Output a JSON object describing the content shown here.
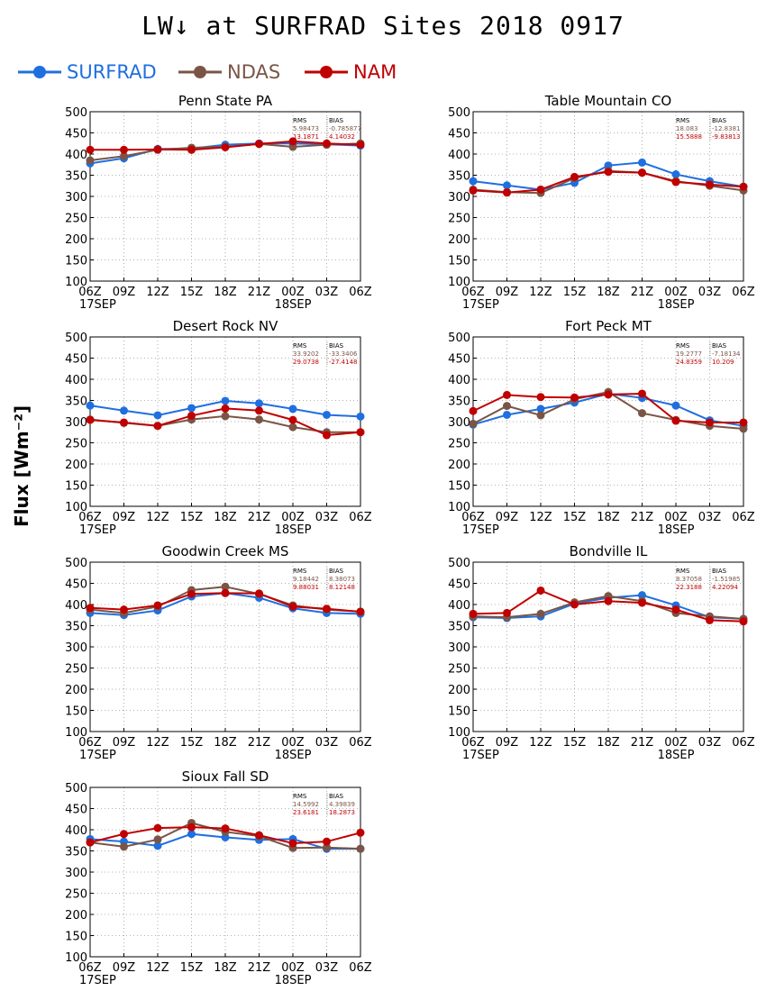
{
  "page": {
    "title": "LW↓ at SURFRAD Sites    2018 0917",
    "ylabel": "Flux [Wm⁻²]"
  },
  "legend": [
    {
      "name": "SURFRAD",
      "color": "#1f6fe0"
    },
    {
      "name": "NDAS",
      "color": "#7a5546"
    },
    {
      "name": "NAM",
      "color": "#c00000"
    }
  ],
  "chart_data": [
    {
      "type": "line",
      "title": "Penn State PA",
      "x": [
        "06Z",
        "09Z",
        "12Z",
        "15Z",
        "18Z",
        "21Z",
        "00Z",
        "03Z",
        "06Z"
      ],
      "date_labels": {
        "06Z_first": "17SEP",
        "00Z": "18SEP"
      },
      "ylim": [
        100,
        500
      ],
      "yticks": [
        100,
        150,
        200,
        250,
        300,
        350,
        400,
        450,
        500
      ],
      "grid": true,
      "stats": {
        "header": [
          "RMS",
          "BIAS"
        ],
        "ndas": [
          "5.98473",
          "-0.785877"
        ],
        "nam": [
          "13.1871",
          "4.14032"
        ]
      },
      "series": [
        {
          "name": "SURFRAD",
          "values": [
            378,
            390,
            412,
            413,
            422,
            425,
            425,
            423,
            420
          ]
        },
        {
          "name": "NDAS",
          "values": [
            385,
            395,
            410,
            415,
            417,
            424,
            417,
            422,
            425
          ]
        },
        {
          "name": "NAM",
          "values": [
            410,
            410,
            411,
            410,
            416,
            424,
            430,
            425,
            422
          ]
        }
      ]
    },
    {
      "type": "line",
      "title": "Table Mountain CO",
      "x": [
        "06Z",
        "09Z",
        "12Z",
        "15Z",
        "18Z",
        "21Z",
        "00Z",
        "03Z",
        "06Z"
      ],
      "date_labels": {
        "06Z_first": "17SEP",
        "00Z": "18SEP"
      },
      "ylim": [
        100,
        500
      ],
      "yticks": [
        100,
        150,
        200,
        250,
        300,
        350,
        400,
        450,
        500
      ],
      "grid": true,
      "stats": {
        "header": [
          "RMS",
          "BIAS"
        ],
        "ndas": [
          "18.083",
          "-12.8381"
        ],
        "nam": [
          "15.5888",
          "-9.83813"
        ]
      },
      "series": [
        {
          "name": "SURFRAD",
          "values": [
            336,
            326,
            316,
            332,
            373,
            380,
            352,
            336,
            323
          ]
        },
        {
          "name": "NDAS",
          "values": [
            316,
            310,
            308,
            343,
            360,
            356,
            336,
            325,
            314
          ]
        },
        {
          "name": "NAM",
          "values": [
            314,
            309,
            316,
            346,
            358,
            356,
            334,
            328,
            323
          ]
        }
      ]
    },
    {
      "type": "line",
      "title": "Desert Rock NV",
      "x": [
        "06Z",
        "09Z",
        "12Z",
        "15Z",
        "18Z",
        "21Z",
        "00Z",
        "03Z",
        "06Z"
      ],
      "date_labels": {
        "06Z_first": "17SEP",
        "00Z": "18SEP"
      },
      "ylim": [
        100,
        500
      ],
      "yticks": [
        100,
        150,
        200,
        250,
        300,
        350,
        400,
        450,
        500
      ],
      "grid": true,
      "stats": {
        "header": [
          "RMS",
          "BIAS"
        ],
        "ndas": [
          "33.9202",
          "-33.3406"
        ],
        "nam": [
          "29.0738",
          "-27.4148"
        ]
      },
      "series": [
        {
          "name": "SURFRAD",
          "values": [
            338,
            326,
            315,
            332,
            349,
            343,
            330,
            316,
            312
          ]
        },
        {
          "name": "NDAS",
          "values": [
            305,
            297,
            290,
            305,
            313,
            305,
            287,
            275,
            275
          ]
        },
        {
          "name": "NAM",
          "values": [
            304,
            298,
            290,
            314,
            331,
            326,
            304,
            268,
            275
          ]
        }
      ]
    },
    {
      "type": "line",
      "title": "Fort Peck MT",
      "x": [
        "06Z",
        "09Z",
        "12Z",
        "15Z",
        "18Z",
        "21Z",
        "00Z",
        "03Z",
        "06Z"
      ],
      "date_labels": {
        "06Z_first": "17SEP",
        "00Z": "18SEP"
      },
      "ylim": [
        100,
        500
      ],
      "yticks": [
        100,
        150,
        200,
        250,
        300,
        350,
        400,
        450,
        500
      ],
      "grid": true,
      "stats": {
        "header": [
          "RMS",
          "BIAS"
        ],
        "ndas": [
          "19.2777",
          "-7.18134"
        ],
        "nam": [
          "24.8359",
          "10.209"
        ]
      },
      "series": [
        {
          "name": "SURFRAD",
          "values": [
            293,
            316,
            330,
            345,
            366,
            356,
            338,
            303,
            290
          ]
        },
        {
          "name": "NDAS",
          "values": [
            295,
            337,
            315,
            353,
            370,
            320,
            304,
            290,
            283
          ]
        },
        {
          "name": "NAM",
          "values": [
            325,
            363,
            358,
            357,
            364,
            366,
            302,
            298,
            298
          ]
        }
      ]
    },
    {
      "type": "line",
      "title": "Goodwin Creek MS",
      "x": [
        "06Z",
        "09Z",
        "12Z",
        "15Z",
        "18Z",
        "21Z",
        "00Z",
        "03Z",
        "06Z"
      ],
      "date_labels": {
        "06Z_first": "17SEP",
        "00Z": "18SEP"
      },
      "ylim": [
        100,
        500
      ],
      "yticks": [
        100,
        150,
        200,
        250,
        300,
        350,
        400,
        450,
        500
      ],
      "grid": true,
      "stats": {
        "header": [
          "RMS",
          "BIAS"
        ],
        "ndas": [
          "9.18442",
          "8.38073"
        ],
        "nam": [
          "9.88031",
          "8.12148"
        ]
      },
      "series": [
        {
          "name": "SURFRAD",
          "values": [
            380,
            375,
            386,
            419,
            427,
            416,
            391,
            380,
            378
          ]
        },
        {
          "name": "NDAS",
          "values": [
            388,
            380,
            395,
            434,
            442,
            425,
            398,
            388,
            383
          ]
        },
        {
          "name": "NAM",
          "values": [
            392,
            388,
            398,
            425,
            427,
            426,
            395,
            390,
            383
          ]
        }
      ]
    },
    {
      "type": "line",
      "title": "Bondville IL",
      "x": [
        "06Z",
        "09Z",
        "12Z",
        "15Z",
        "18Z",
        "21Z",
        "00Z",
        "03Z",
        "06Z"
      ],
      "date_labels": {
        "06Z_first": "17SEP",
        "00Z": "18SEP"
      },
      "ylim": [
        100,
        500
      ],
      "yticks": [
        100,
        150,
        200,
        250,
        300,
        350,
        400,
        450,
        500
      ],
      "grid": true,
      "stats": {
        "header": [
          "RMS",
          "BIAS"
        ],
        "ndas": [
          "8.37058",
          "-1.51985"
        ],
        "nam": [
          "22.3188",
          "4.22094"
        ]
      },
      "series": [
        {
          "name": "SURFRAD",
          "values": [
            370,
            368,
            372,
            402,
            416,
            422,
            398,
            370,
            366
          ]
        },
        {
          "name": "NDAS",
          "values": [
            372,
            370,
            378,
            405,
            420,
            408,
            380,
            372,
            366
          ]
        },
        {
          "name": "NAM",
          "values": [
            378,
            380,
            433,
            400,
            408,
            404,
            388,
            363,
            360
          ]
        }
      ]
    },
    {
      "type": "line",
      "title": "Sioux Fall SD",
      "x": [
        "06Z",
        "09Z",
        "12Z",
        "15Z",
        "18Z",
        "21Z",
        "00Z",
        "03Z",
        "06Z"
      ],
      "date_labels": {
        "06Z_first": "17SEP",
        "00Z": "18SEP"
      },
      "ylim": [
        100,
        500
      ],
      "yticks": [
        100,
        150,
        200,
        250,
        300,
        350,
        400,
        450,
        500
      ],
      "grid": true,
      "stats": {
        "header": [
          "RMS",
          "BIAS"
        ],
        "ndas": [
          "14.5992",
          "4.39839"
        ],
        "nam": [
          "23.6181",
          "18.2873"
        ]
      },
      "series": [
        {
          "name": "SURFRAD",
          "values": [
            378,
            372,
            362,
            390,
            382,
            376,
            378,
            355,
            355
          ]
        },
        {
          "name": "NDAS",
          "values": [
            370,
            360,
            377,
            416,
            395,
            385,
            357,
            358,
            355
          ]
        },
        {
          "name": "NAM",
          "values": [
            370,
            390,
            404,
            406,
            403,
            387,
            368,
            372,
            393
          ]
        }
      ]
    }
  ]
}
